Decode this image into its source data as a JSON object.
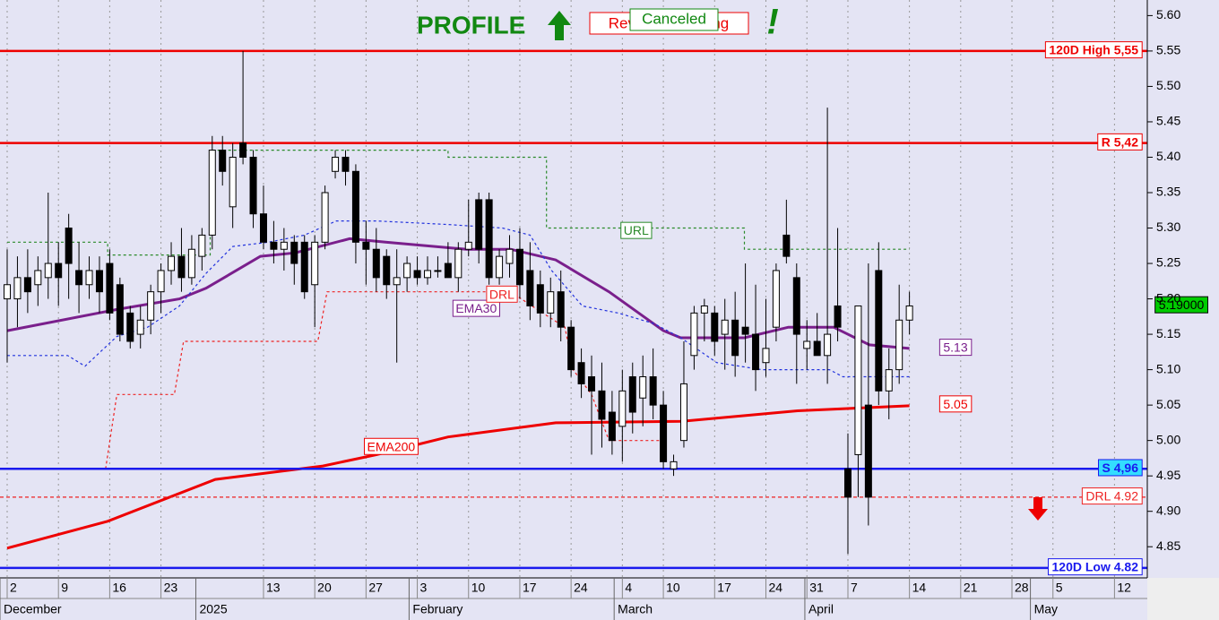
{
  "chart_data": {
    "type": "candlestick",
    "title": "PROFILE",
    "badges": [
      "Reversal Warning",
      "Canceled",
      "!"
    ],
    "open": [
      5.2,
      5.2,
      5.23,
      5.22,
      5.23,
      5.25,
      5.3,
      5.24,
      5.22,
      5.24,
      5.25,
      5.22,
      5.18,
      5.15,
      5.17,
      5.21,
      5.24,
      5.26,
      5.23,
      5.26,
      5.29,
      5.41,
      5.33,
      5.42,
      5.4,
      5.32,
      5.28,
      5.27,
      5.28,
      5.28,
      5.22,
      5.28,
      5.38,
      5.4,
      5.38,
      5.28,
      5.27,
      5.26,
      5.22,
      5.23,
      5.24,
      5.23,
      5.24,
      5.25,
      5.23,
      5.27,
      5.34,
      5.34,
      5.23,
      5.25,
      5.27,
      5.24,
      5.22,
      5.18,
      5.21,
      5.16,
      5.11,
      5.09,
      5.07,
      5.04,
      5.02,
      5.09,
      5.06,
      5.09,
      5.05,
      4.96,
      5.0,
      5.12,
      5.18,
      5.18,
      5.15,
      5.17,
      5.16,
      5.15,
      5.11,
      5.16,
      5.29,
      5.23,
      5.13,
      5.14,
      5.12,
      5.19,
      4.96,
      4.98,
      5.05,
      5.24,
      5.07,
      5.1,
      5.17
    ],
    "high": [
      5.27,
      5.26,
      5.27,
      5.26,
      5.35,
      5.28,
      5.32,
      5.28,
      5.26,
      5.26,
      5.27,
      5.23,
      5.19,
      5.19,
      5.22,
      5.25,
      5.28,
      5.3,
      5.29,
      5.3,
      5.43,
      5.43,
      5.42,
      5.55,
      5.41,
      5.36,
      5.31,
      5.3,
      5.29,
      5.29,
      5.29,
      5.36,
      5.41,
      5.41,
      5.39,
      5.31,
      5.3,
      5.27,
      5.27,
      5.26,
      5.26,
      5.26,
      5.26,
      5.28,
      5.28,
      5.34,
      5.35,
      5.35,
      5.27,
      5.29,
      5.3,
      5.28,
      5.24,
      5.23,
      5.24,
      5.17,
      5.13,
      5.12,
      5.11,
      5.07,
      5.1,
      5.11,
      5.12,
      5.13,
      5.07,
      4.98,
      5.14,
      5.19,
      5.2,
      5.19,
      5.2,
      5.21,
      5.25,
      5.22,
      5.2,
      5.25,
      5.34,
      5.25,
      5.17,
      5.18,
      5.47,
      5.3,
      5.01,
      5.19,
      5.25,
      5.28,
      5.13,
      5.22,
      5.21
    ],
    "low": [
      5.11,
      5.16,
      5.18,
      5.19,
      5.2,
      5.19,
      5.2,
      5.18,
      5.2,
      5.18,
      5.17,
      5.14,
      5.13,
      5.13,
      5.15,
      5.18,
      5.22,
      5.21,
      5.22,
      5.24,
      5.27,
      5.36,
      5.3,
      5.39,
      5.3,
      5.27,
      5.25,
      5.24,
      5.22,
      5.2,
      5.16,
      5.27,
      5.37,
      5.36,
      5.25,
      5.22,
      5.21,
      5.2,
      5.11,
      5.21,
      5.22,
      5.22,
      5.23,
      5.23,
      5.21,
      5.26,
      5.25,
      5.22,
      5.22,
      5.23,
      5.2,
      5.17,
      5.16,
      5.16,
      5.14,
      5.09,
      5.06,
      4.98,
      4.99,
      4.98,
      4.97,
      5.01,
      5.02,
      5.03,
      4.96,
      4.95,
      4.99,
      5.1,
      5.14,
      5.12,
      5.1,
      5.09,
      5.11,
      5.07,
      5.09,
      5.14,
      5.25,
      5.08,
      5.1,
      5.12,
      5.08,
      5.14,
      4.84,
      4.92,
      4.88,
      5.05,
      5.03,
      5.08,
      5.15
    ],
    "close": [
      5.22,
      5.23,
      5.21,
      5.24,
      5.25,
      5.23,
      5.25,
      5.22,
      5.24,
      5.21,
      5.18,
      5.15,
      5.14,
      5.17,
      5.21,
      5.24,
      5.26,
      5.23,
      5.27,
      5.29,
      5.41,
      5.38,
      5.4,
      5.4,
      5.32,
      5.28,
      5.27,
      5.28,
      5.25,
      5.21,
      5.28,
      5.35,
      5.4,
      5.38,
      5.28,
      5.27,
      5.23,
      5.22,
      5.23,
      5.25,
      5.23,
      5.24,
      5.24,
      5.23,
      5.27,
      5.28,
      5.27,
      5.23,
      5.26,
      5.27,
      5.22,
      5.19,
      5.18,
      5.21,
      5.16,
      5.1,
      5.08,
      5.07,
      5.03,
      5.0,
      5.07,
      5.04,
      5.09,
      5.05,
      4.97,
      4.97,
      5.08,
      5.18,
      5.19,
      5.14,
      5.17,
      5.12,
      5.15,
      5.1,
      5.13,
      5.24,
      5.26,
      5.15,
      5.14,
      5.12,
      5.15,
      5.16,
      4.92,
      5.19,
      4.92,
      5.07,
      5.1,
      5.17,
      5.19
    ],
    "xlim": [
      -0.7,
      111.2
    ],
    "ylim": [
      4.806,
      5.622
    ],
    "xticks": [
      {
        "value": 0,
        "label": "2"
      },
      {
        "value": 5,
        "label": "9"
      },
      {
        "value": 10,
        "label": "16"
      },
      {
        "value": 15,
        "label": "23"
      },
      {
        "value": 25,
        "label": "13"
      },
      {
        "value": 30,
        "label": "20"
      },
      {
        "value": 35,
        "label": "27"
      },
      {
        "value": 40,
        "label": "3"
      },
      {
        "value": 45,
        "label": "10"
      },
      {
        "value": 50,
        "label": "17"
      },
      {
        "value": 55,
        "label": "24"
      },
      {
        "value": 60,
        "label": "4"
      },
      {
        "value": 64,
        "label": "10"
      },
      {
        "value": 69,
        "label": "17"
      },
      {
        "value": 74,
        "label": "24"
      },
      {
        "value": 78,
        "label": "31"
      },
      {
        "value": 82,
        "label": "7"
      },
      {
        "value": 88,
        "label": "14"
      },
      {
        "value": 93,
        "label": "21"
      },
      {
        "value": 98,
        "label": "28"
      },
      {
        "value": 102,
        "label": "5"
      },
      {
        "value": 108,
        "label": "12"
      }
    ],
    "months": [
      {
        "value": -0.7,
        "label": "December"
      },
      {
        "value": 18.4,
        "label": "2025"
      },
      {
        "value": 39.2,
        "label": "February"
      },
      {
        "value": 59.2,
        "label": "March"
      },
      {
        "value": 77.8,
        "label": "April"
      },
      {
        "value": 99.8,
        "label": "May"
      }
    ],
    "yticks": [
      4.85,
      {
        "value": 4.9,
        "label": "4.90"
      },
      4.95,
      {
        "value": 5,
        "label": "5.00"
      },
      5.05,
      {
        "value": 5.1,
        "label": "5.10"
      },
      5.15,
      {
        "value": 5.2,
        "label": "5.20"
      },
      5.25,
      {
        "value": 5.3,
        "label": "5.30"
      },
      5.35,
      {
        "value": 5.4,
        "label": "5.40"
      },
      5.45,
      {
        "value": 5.5,
        "label": "5.50"
      },
      5.55,
      {
        "value": 5.6,
        "label": "5.60"
      }
    ],
    "grid": true,
    "lines": [
      {
        "name": "EMA30",
        "color": "#7a1f8c",
        "x": [
          0,
          10.7,
          16.8,
          19.4,
          24.7,
          28.1,
          33.4,
          36.9,
          44.8,
          49.1,
          53.5,
          58.7,
          64,
          65.7,
          71.9,
          76.2,
          80.6,
          84.1,
          88
        ],
        "values": [
          5.155,
          5.185,
          5.2,
          5.215,
          5.26,
          5.265,
          5.285,
          5.28,
          5.27,
          5.27,
          5.255,
          5.21,
          5.155,
          5.145,
          5.145,
          5.16,
          5.16,
          5.135,
          5.13
        ]
      },
      {
        "name": "EMA200",
        "color": "#ee0000",
        "x": [
          0,
          9.8,
          20.3,
          30.8,
          36,
          43,
          53.5,
          65.7,
          77.1,
          88
        ],
        "values": [
          4.848,
          4.886,
          4.945,
          4.964,
          4.98,
          5.005,
          5.025,
          5.027,
          5.042,
          5.049
        ]
      },
      {
        "name": "URL",
        "color": "#2a8a2a",
        "dashed": true,
        "x": [
          0,
          9.8,
          9.8,
          19.8,
          19.8,
          43,
          43,
          52.6,
          52.6,
          71.9,
          71.9,
          88
        ],
        "values": [
          5.28,
          5.28,
          5.262,
          5.262,
          5.41,
          5.41,
          5.4,
          5.4,
          5.3,
          5.3,
          5.27,
          5.27
        ]
      },
      {
        "name": "DRL",
        "color": "#ee2222",
        "dashed": true,
        "x": [
          9.6,
          10.7,
          16.3,
          17.2,
          30.3,
          31.2,
          49.1,
          51.7,
          54.4,
          55.2,
          57,
          58.7,
          64
        ],
        "values": [
          4.96,
          5.065,
          5.065,
          5.14,
          5.14,
          5.21,
          5.21,
          5.185,
          5.16,
          5.1,
          5.065,
          5.0,
          5.0
        ]
      },
      {
        "color": "#2233dd",
        "dashed": true,
        "x": [
          0,
          5.9,
          7.6,
          10.7,
          13.7,
          16.8,
          19.4,
          22,
          25.5,
          29,
          32.1,
          36,
          43,
          48.3,
          51,
          53.1,
          56.1,
          59.6,
          63.1,
          65.7,
          69.2,
          73.6,
          80.2,
          81.5,
          88
        ],
        "values": [
          5.12,
          5.12,
          5.105,
          5.147,
          5.16,
          5.19,
          5.236,
          5.274,
          5.28,
          5.29,
          5.31,
          5.31,
          5.305,
          5.3,
          5.29,
          5.24,
          5.19,
          5.18,
          5.165,
          5.145,
          5.11,
          5.1,
          5.1,
          5.09,
          5.09
        ]
      }
    ],
    "levels": [
      {
        "label": "120D High 5,55",
        "value": 5.55,
        "color": "#ee0000"
      },
      {
        "label": "R 5,42",
        "value": 5.42,
        "color": "#ee0000"
      },
      {
        "label": "S 4,96",
        "value": 4.96,
        "color": "#1a1aee"
      },
      {
        "label": "DRL 4.92",
        "value": 4.92,
        "color": "#ee2222",
        "dashed": true
      },
      {
        "label": "120D Low 4.82",
        "value": 4.82,
        "color": "#1a1aee"
      }
    ],
    "price_labels": [
      {
        "label": "5.13",
        "value": 5.13,
        "color": "#7a1f8c"
      },
      {
        "label": "5.05",
        "value": 5.05,
        "color": "#ee0000"
      },
      {
        "label": "5.19000",
        "value": 5.19,
        "color": "#00cc00"
      }
    ]
  }
}
